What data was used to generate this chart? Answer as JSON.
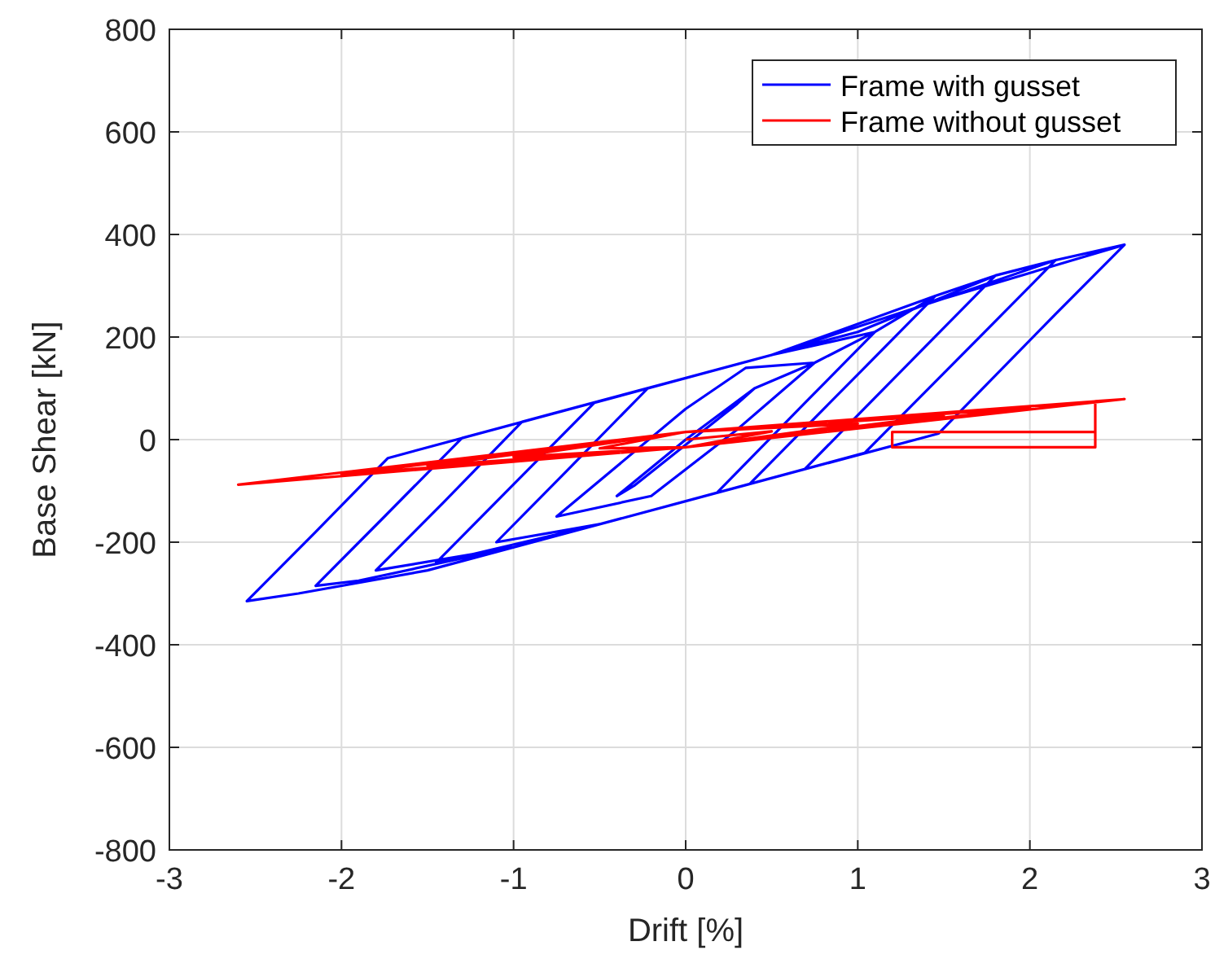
{
  "chart_data": {
    "type": "line",
    "xlabel": "Drift [%]",
    "ylabel": "Base Shear [kN]",
    "xlim": [
      -3,
      3
    ],
    "ylim": [
      -800,
      800
    ],
    "xticks": [
      -3,
      -2,
      -1,
      0,
      1,
      2,
      3
    ],
    "yticks": [
      -800,
      -600,
      -400,
      -200,
      0,
      200,
      400,
      600,
      800
    ],
    "grid": true,
    "legend": "top right",
    "line_style": "solid",
    "marker": "none",
    "series": [
      {
        "name": "Frame with gusset",
        "color": "#0000ff",
        "x": [
          0,
          0.4,
          0.3,
          -0.3,
          -0.4,
          0,
          0.4,
          0.75,
          0.3,
          -0.2,
          -0.75,
          0,
          0.35,
          0.75,
          1.1,
          0.7,
          0.18,
          -0.5,
          -1.1,
          -0.7,
          -0.22,
          0.5,
          1.1,
          1.45,
          1.05,
          0.37,
          -0.5,
          -1.45,
          -1.05,
          -0.53,
          0.5,
          1.45,
          1.8,
          1.4,
          0.69,
          0,
          -1,
          -1.8,
          -1.4,
          -0.95,
          0,
          1,
          1.8,
          2.15,
          1.75,
          1.04,
          0,
          -1,
          -1.9,
          -2.15,
          -1.75,
          -1.3,
          -0.5,
          0.5,
          1.5,
          2.15,
          2.55,
          2.15,
          1.47,
          0.5,
          -0.5,
          -1.5,
          -2.25,
          -2.55,
          -2.15,
          -1.73,
          -0.5,
          0.5,
          1.5,
          2.25,
          2.55
        ],
        "values": [
          0,
          100,
          70,
          -90,
          -110,
          0,
          100,
          150,
          20,
          -110,
          -150,
          60,
          140,
          150,
          210,
          74,
          -104,
          -165,
          -200,
          -64,
          100,
          165,
          210,
          280,
          144,
          -87,
          -165,
          -240,
          -104,
          72,
          165,
          280,
          320,
          184,
          -58,
          -120,
          -210,
          -255,
          -120,
          35,
          120,
          210,
          320,
          350,
          214,
          -26,
          -120,
          -210,
          -275,
          -285,
          -150,
          3,
          75,
          165,
          275,
          350,
          380,
          245,
          12,
          -75,
          -165,
          -255,
          -300,
          -315,
          -180,
          -36,
          75,
          165,
          275,
          350,
          380
        ]
      },
      {
        "name": "Frame without gusset",
        "color": "#ff0000",
        "x": [
          0,
          0.5,
          0,
          -0.5,
          0,
          1,
          0,
          -1,
          0,
          1.5,
          0,
          -1.5,
          0,
          2,
          0,
          -2,
          0,
          2.55,
          0,
          -2.6,
          0,
          2.55,
          2.38,
          2.38,
          1.2,
          1.2,
          2.38
        ],
        "values": [
          0,
          16,
          -15,
          -17,
          15,
          31,
          -15,
          -34,
          15,
          47,
          -15,
          -51,
          15,
          62,
          -15,
          -68,
          15,
          79,
          -15,
          -88,
          15,
          79,
          75,
          -15,
          -15,
          15,
          15
        ]
      }
    ]
  }
}
